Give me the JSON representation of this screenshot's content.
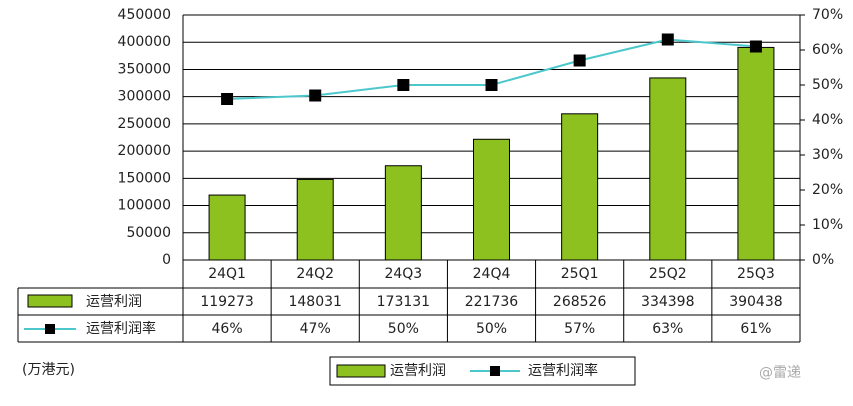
{
  "chart_data": {
    "type": "bar-line",
    "categories": [
      "24Q1",
      "24Q2",
      "24Q3",
      "24Q4",
      "25Q1",
      "25Q2",
      "25Q3"
    ],
    "series": [
      {
        "name": "运营利润",
        "type": "bar",
        "color": "#8cc11f",
        "values": [
          119273,
          148031,
          173131,
          221736,
          268526,
          334398,
          390438
        ]
      },
      {
        "name": "运营利润率",
        "type": "line",
        "axis": "y2",
        "color": "#4cc8cc",
        "values": [
          46,
          47,
          50,
          50,
          57,
          63,
          61
        ],
        "value_labels": [
          "46%",
          "47%",
          "50%",
          "50%",
          "57%",
          "63%",
          "61%"
        ]
      }
    ],
    "ylim": [
      0,
      450000
    ],
    "yticks": [
      0,
      50000,
      100000,
      150000,
      200000,
      250000,
      300000,
      350000,
      400000,
      450000
    ],
    "y2lim": [
      0,
      70
    ],
    "y2ticks": [
      {
        "value": 0,
        "label": "0%"
      },
      {
        "value": 10,
        "label": "10%"
      },
      {
        "value": 20,
        "label": "20%"
      },
      {
        "value": 30,
        "label": "30%"
      },
      {
        "value": 40,
        "label": "40%"
      },
      {
        "value": 50,
        "label": "50%"
      },
      {
        "value": 60,
        "label": "60%"
      },
      {
        "value": 70,
        "label": "70%"
      }
    ],
    "grid": true,
    "unit_label": "(万港元)",
    "watermark": "@雷递"
  }
}
